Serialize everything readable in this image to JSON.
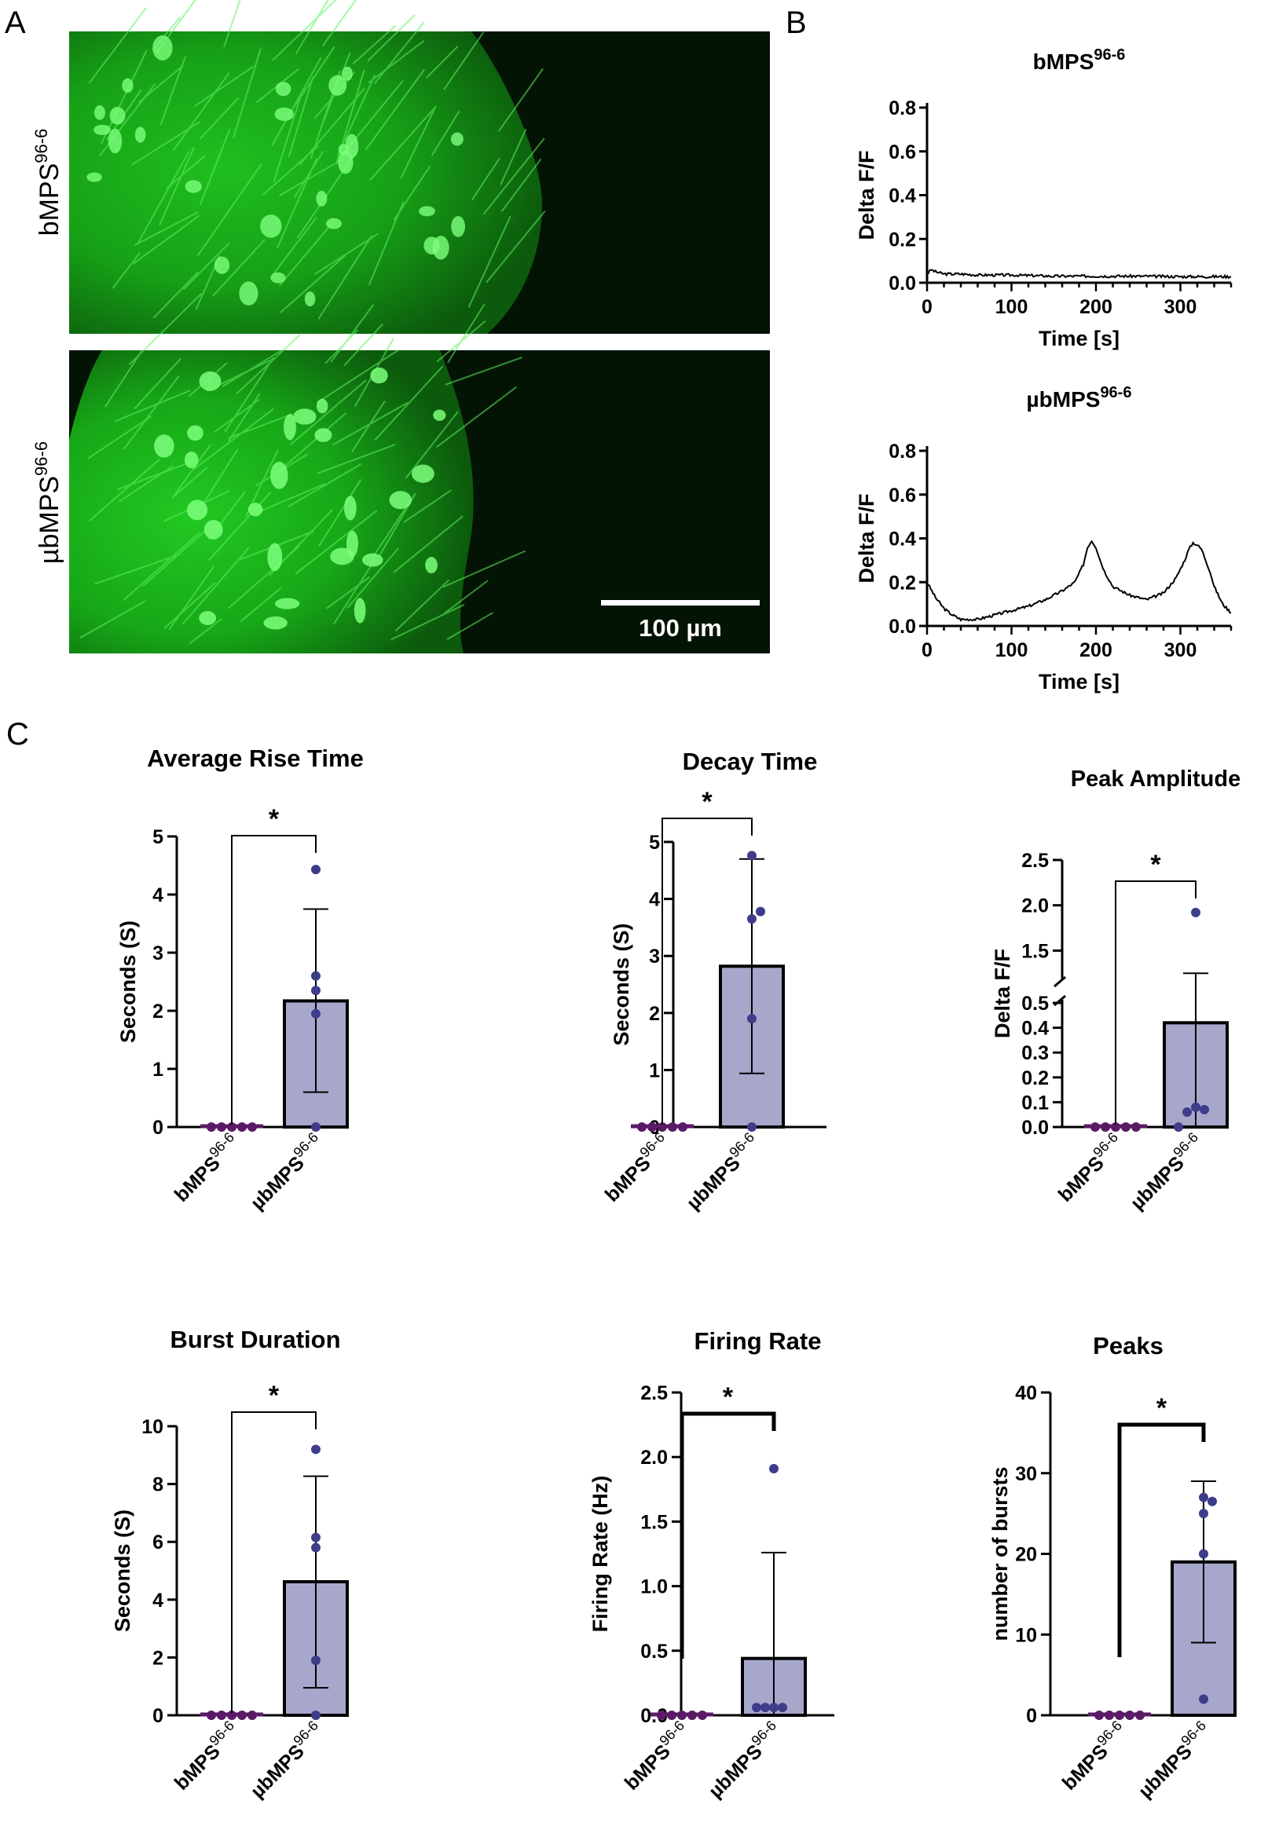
{
  "panels": {
    "a": "A",
    "b": "B",
    "c": "C"
  },
  "micrographs": {
    "top_label_base": "bMPS",
    "top_label_sup": "96-6",
    "bottom_label_base": "µbMPS",
    "bottom_label_sup": "96-6",
    "scale_bar": "100 µm",
    "colors": {
      "fluorescence": "#2ee82e",
      "background": "#041404"
    }
  },
  "colors": {
    "bar_fill": "#a7a7cc",
    "dot": "#3d3d8a",
    "dot_b": "#5a1a66",
    "line": "#000000"
  },
  "chart_data": [
    {
      "id": "trace_bmps",
      "type": "line",
      "title_base": "bMPS",
      "title_sup": "96-6",
      "xlabel": "Time [s]",
      "ylabel": "Delta F/F",
      "xlim": [
        0,
        360
      ],
      "ylim": [
        0,
        0.8
      ],
      "xticks": [
        "0",
        "100",
        "200",
        "300"
      ],
      "yticks": [
        "0.0",
        "0.2",
        "0.4",
        "0.6",
        "0.8"
      ],
      "x": [
        0,
        5,
        10,
        20,
        40,
        60,
        80,
        100,
        150,
        200,
        250,
        300,
        360
      ],
      "y": [
        0.04,
        0.06,
        0.05,
        0.04,
        0.04,
        0.035,
        0.035,
        0.035,
        0.03,
        0.03,
        0.03,
        0.028,
        0.028
      ]
    },
    {
      "id": "trace_ubmps",
      "type": "line",
      "title_base": "µbMPS",
      "title_sup": "96-6",
      "xlabel": "Time [s]",
      "ylabel": "Delta F/F",
      "xlim": [
        0,
        360
      ],
      "ylim": [
        0,
        0.8
      ],
      "xticks": [
        "0",
        "100",
        "200",
        "300"
      ],
      "yticks": [
        "0.0",
        "0.2",
        "0.4",
        "0.6",
        "0.8"
      ],
      "x": [
        0,
        10,
        20,
        30,
        40,
        60,
        80,
        100,
        120,
        140,
        160,
        175,
        185,
        190,
        195,
        200,
        205,
        210,
        220,
        240,
        260,
        280,
        295,
        305,
        310,
        315,
        320,
        325,
        330,
        335,
        340,
        350,
        360
      ],
      "y": [
        0.2,
        0.13,
        0.08,
        0.05,
        0.03,
        0.03,
        0.05,
        0.07,
        0.09,
        0.12,
        0.16,
        0.2,
        0.28,
        0.36,
        0.39,
        0.36,
        0.3,
        0.25,
        0.18,
        0.14,
        0.12,
        0.15,
        0.22,
        0.3,
        0.35,
        0.38,
        0.37,
        0.35,
        0.3,
        0.25,
        0.18,
        0.1,
        0.06
      ]
    },
    {
      "id": "rise",
      "type": "bar",
      "title": "Average Rise Time",
      "ylabel": "Seconds (S)",
      "categories": [
        "bMPS",
        "µbMPS"
      ],
      "cat_sup": "96-6",
      "values": [
        0,
        2.17
      ],
      "error_lower": [
        null,
        0.6
      ],
      "error_upper": [
        null,
        3.75
      ],
      "points": [
        [
          0,
          0,
          0,
          0,
          0
        ],
        [
          0,
          1.95,
          2.35,
          2.6,
          4.43
        ]
      ],
      "ylim": [
        0,
        5
      ],
      "yticks": [
        "0",
        "1",
        "2",
        "3",
        "4",
        "5"
      ],
      "significance": "*"
    },
    {
      "id": "decay",
      "type": "bar",
      "title": "Decay Time",
      "ylabel": "Seconds (S)",
      "categories": [
        "bMPS",
        "µbMPS"
      ],
      "cat_sup": "96-6",
      "values": [
        0,
        2.82
      ],
      "error_lower": [
        null,
        0.94
      ],
      "error_upper": [
        null,
        4.7
      ],
      "points": [
        [
          0,
          0,
          0,
          0,
          0
        ],
        [
          0,
          1.9,
          3.65,
          3.78,
          4.76
        ]
      ],
      "ylim": [
        0,
        5
      ],
      "yticks": [
        "0",
        "1",
        "2",
        "3",
        "4",
        "5"
      ],
      "significance": "*"
    },
    {
      "id": "peak",
      "type": "bar",
      "title": "Peak Amplitude",
      "ylabel": "Delta F/F",
      "categories": [
        "bMPS",
        "µbMPS"
      ],
      "cat_sup": "96-6",
      "values": [
        0,
        0.42
      ],
      "error_lower": [
        null,
        0
      ],
      "error_upper": [
        null,
        1.25
      ],
      "points": [
        [
          0,
          0,
          0,
          0,
          0
        ],
        [
          0,
          0.06,
          0.08,
          0.07,
          1.92
        ]
      ],
      "ylim": [
        0,
        2.5
      ],
      "axis_break": [
        0.5,
        1.2
      ],
      "yticks_lower": [
        "0.0",
        "0.1",
        "0.2",
        "0.3",
        "0.4",
        "0.5"
      ],
      "yticks_upper": [
        "1.5",
        "2.0",
        "2.5"
      ],
      "significance": "*"
    },
    {
      "id": "burst",
      "type": "bar",
      "title": "Burst Duration",
      "ylabel": "Seconds (S)",
      "categories": [
        "bMPS",
        "µbMPS"
      ],
      "cat_sup": "96-6",
      "values": [
        0,
        4.62
      ],
      "error_lower": [
        null,
        0.95
      ],
      "error_upper": [
        null,
        8.27
      ],
      "points": [
        [
          0,
          0,
          0,
          0,
          0
        ],
        [
          0,
          1.9,
          5.8,
          6.15,
          9.2
        ]
      ],
      "ylim": [
        0,
        10
      ],
      "yticks": [
        "0",
        "2",
        "4",
        "6",
        "8",
        "10"
      ],
      "significance": "*"
    },
    {
      "id": "firing",
      "type": "bar",
      "title": "Firing Rate",
      "ylabel": "Firing Rate (Hz)",
      "categories": [
        "bMPS",
        "µbMPS"
      ],
      "cat_sup": "96-6",
      "values": [
        0,
        0.44
      ],
      "error_lower": [
        null,
        0
      ],
      "error_upper": [
        null,
        1.26
      ],
      "points": [
        [
          0,
          0,
          0,
          0,
          0
        ],
        [
          0.06,
          0.06,
          0.06,
          0.06,
          1.91
        ]
      ],
      "ylim": [
        0,
        2.5
      ],
      "yticks": [
        "0.0",
        "0.5",
        "1.0",
        "1.5",
        "2.0",
        "2.5"
      ],
      "significance": "*"
    },
    {
      "id": "peaks",
      "type": "bar",
      "title": "Peaks",
      "ylabel": "number of bursts",
      "categories": [
        "bMPS",
        "µbMPS"
      ],
      "cat_sup": "96-6",
      "values": [
        0,
        19
      ],
      "error_lower": [
        null,
        9
      ],
      "error_upper": [
        null,
        29
      ],
      "points": [
        [
          0,
          0,
          0,
          0,
          0
        ],
        [
          2,
          20,
          25,
          26.5,
          27
        ]
      ],
      "ylim": [
        0,
        40
      ],
      "yticks": [
        "0",
        "10",
        "20",
        "30",
        "40"
      ],
      "significance": "*"
    }
  ]
}
